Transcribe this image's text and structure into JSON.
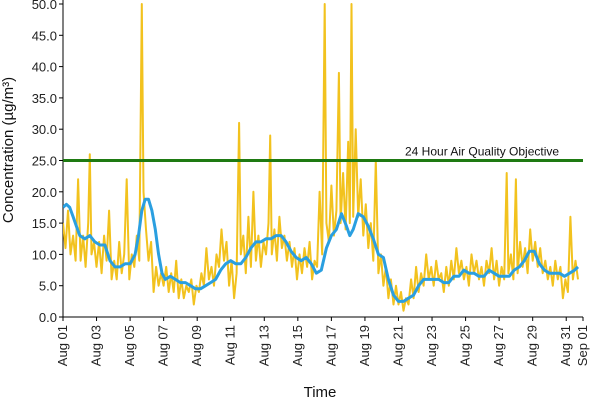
{
  "chart_data": {
    "type": "line",
    "xlabel": "Time",
    "ylabel": "Concentration (µg/m³)",
    "ylim": [
      0,
      50
    ],
    "yticks": [
      "0.0",
      "5.0",
      "10.0",
      "15.0",
      "20.0",
      "25.0",
      "30.0",
      "35.0",
      "40.0",
      "45.0",
      "50.0"
    ],
    "xticks": [
      "Aug 01",
      "Aug 03",
      "Aug 05",
      "Aug 07",
      "Aug 09",
      "Aug 11",
      "Aug 13",
      "Aug 15",
      "Aug 17",
      "Aug 19",
      "Aug 21",
      "Aug 23",
      "Aug 25",
      "Aug 27",
      "Aug 29",
      "Aug 31",
      "Sep 01"
    ],
    "x_unit": "day of month (August; 32 = Sep 01)",
    "xlim": [
      1,
      32
    ],
    "grid": false,
    "annotation": {
      "label": "24 Hour Air Quality Objective",
      "value": 25.0
    },
    "series": [
      {
        "color": "#f2c21e",
        "style": "hourly",
        "points": [
          [
            1.0,
            15
          ],
          [
            1.15,
            11
          ],
          [
            1.3,
            17
          ],
          [
            1.45,
            10
          ],
          [
            1.6,
            13
          ],
          [
            1.75,
            9
          ],
          [
            1.9,
            22
          ],
          [
            2.05,
            9
          ],
          [
            2.2,
            13
          ],
          [
            2.35,
            8
          ],
          [
            2.5,
            15
          ],
          [
            2.6,
            26
          ],
          [
            2.7,
            10
          ],
          [
            2.85,
            12
          ],
          [
            3.0,
            8
          ],
          [
            3.15,
            12
          ],
          [
            3.3,
            7
          ],
          [
            3.45,
            13
          ],
          [
            3.6,
            9
          ],
          [
            3.75,
            17
          ],
          [
            3.9,
            6
          ],
          [
            4.05,
            9
          ],
          [
            4.2,
            6
          ],
          [
            4.35,
            12
          ],
          [
            4.5,
            7
          ],
          [
            4.65,
            10
          ],
          [
            4.8,
            22
          ],
          [
            4.95,
            6
          ],
          [
            5.1,
            10
          ],
          [
            5.25,
            8
          ],
          [
            5.4,
            13
          ],
          [
            5.55,
            9
          ],
          [
            5.7,
            50
          ],
          [
            5.8,
            20
          ],
          [
            5.95,
            14
          ],
          [
            6.1,
            9
          ],
          [
            6.25,
            12
          ],
          [
            6.4,
            4
          ],
          [
            6.55,
            8
          ],
          [
            6.7,
            5
          ],
          [
            6.85,
            7
          ],
          [
            7.0,
            5
          ],
          [
            7.15,
            8
          ],
          [
            7.3,
            4
          ],
          [
            7.45,
            7
          ],
          [
            7.6,
            4
          ],
          [
            7.75,
            9
          ],
          [
            7.9,
            3
          ],
          [
            8.05,
            6
          ],
          [
            8.2,
            3
          ],
          [
            8.35,
            5
          ],
          [
            8.5,
            4
          ],
          [
            8.65,
            6
          ],
          [
            8.8,
            2
          ],
          [
            8.95,
            5
          ],
          [
            9.1,
            4
          ],
          [
            9.25,
            7
          ],
          [
            9.4,
            5
          ],
          [
            9.55,
            11
          ],
          [
            9.7,
            6
          ],
          [
            9.85,
            8
          ],
          [
            10.0,
            5
          ],
          [
            10.15,
            10
          ],
          [
            10.3,
            8
          ],
          [
            10.45,
            14
          ],
          [
            10.6,
            9
          ],
          [
            10.75,
            12
          ],
          [
            10.9,
            5
          ],
          [
            11.05,
            9
          ],
          [
            11.2,
            3
          ],
          [
            11.35,
            7
          ],
          [
            11.5,
            31
          ],
          [
            11.6,
            10
          ],
          [
            11.75,
            13
          ],
          [
            11.9,
            7
          ],
          [
            12.05,
            16
          ],
          [
            12.2,
            8
          ],
          [
            12.35,
            20
          ],
          [
            12.5,
            9
          ],
          [
            12.65,
            13
          ],
          [
            12.8,
            8
          ],
          [
            12.95,
            12
          ],
          [
            13.1,
            10
          ],
          [
            13.25,
            15
          ],
          [
            13.35,
            29
          ],
          [
            13.45,
            10
          ],
          [
            13.6,
            14
          ],
          [
            13.75,
            9
          ],
          [
            13.9,
            16
          ],
          [
            14.05,
            11
          ],
          [
            14.2,
            13
          ],
          [
            14.35,
            9
          ],
          [
            14.5,
            12
          ],
          [
            14.65,
            8
          ],
          [
            14.8,
            11
          ],
          [
            14.95,
            6
          ],
          [
            15.1,
            10
          ],
          [
            15.25,
            7
          ],
          [
            15.4,
            11
          ],
          [
            15.55,
            8
          ],
          [
            15.7,
            12
          ],
          [
            15.85,
            6
          ],
          [
            16.0,
            9
          ],
          [
            16.15,
            8
          ],
          [
            16.3,
            20
          ],
          [
            16.45,
            10
          ],
          [
            16.6,
            50
          ],
          [
            16.7,
            15
          ],
          [
            16.85,
            12
          ],
          [
            17.0,
            21
          ],
          [
            17.15,
            13
          ],
          [
            17.3,
            17
          ],
          [
            17.45,
            39
          ],
          [
            17.55,
            15
          ],
          [
            17.7,
            23
          ],
          [
            17.85,
            14
          ],
          [
            18.0,
            28
          ],
          [
            18.1,
            15
          ],
          [
            18.2,
            50
          ],
          [
            18.3,
            16
          ],
          [
            18.45,
            30
          ],
          [
            18.6,
            16
          ],
          [
            18.75,
            22
          ],
          [
            18.9,
            13
          ],
          [
            19.05,
            18
          ],
          [
            19.2,
            11
          ],
          [
            19.35,
            15
          ],
          [
            19.5,
            9
          ],
          [
            19.65,
            25
          ],
          [
            19.8,
            7
          ],
          [
            19.95,
            10
          ],
          [
            20.1,
            5
          ],
          [
            20.25,
            8
          ],
          [
            20.4,
            3
          ],
          [
            20.55,
            6
          ],
          [
            20.7,
            2
          ],
          [
            20.85,
            5
          ],
          [
            21.0,
            2
          ],
          [
            21.15,
            4
          ],
          [
            21.3,
            1
          ],
          [
            21.45,
            3
          ],
          [
            21.6,
            2
          ],
          [
            21.75,
            6
          ],
          [
            21.9,
            3
          ],
          [
            22.05,
            8
          ],
          [
            22.2,
            4
          ],
          [
            22.35,
            7
          ],
          [
            22.5,
            5
          ],
          [
            22.65,
            10
          ],
          [
            22.8,
            6
          ],
          [
            22.95,
            8
          ],
          [
            23.1,
            5
          ],
          [
            23.25,
            9
          ],
          [
            23.4,
            6
          ],
          [
            23.55,
            7
          ],
          [
            23.7,
            4
          ],
          [
            23.85,
            8
          ],
          [
            24.0,
            5
          ],
          [
            24.15,
            9
          ],
          [
            24.3,
            6
          ],
          [
            24.45,
            11
          ],
          [
            24.6,
            7
          ],
          [
            24.75,
            9
          ],
          [
            24.9,
            6
          ],
          [
            25.05,
            8
          ],
          [
            25.2,
            5
          ],
          [
            25.35,
            10
          ],
          [
            25.5,
            7
          ],
          [
            25.65,
            9
          ],
          [
            25.8,
            6
          ],
          [
            25.95,
            8
          ],
          [
            26.1,
            5
          ],
          [
            26.25,
            9
          ],
          [
            26.4,
            7
          ],
          [
            26.55,
            11
          ],
          [
            26.7,
            6
          ],
          [
            26.85,
            9
          ],
          [
            27.0,
            5
          ],
          [
            27.15,
            8
          ],
          [
            27.3,
            6
          ],
          [
            27.45,
            23
          ],
          [
            27.55,
            7
          ],
          [
            27.7,
            10
          ],
          [
            27.85,
            6
          ],
          [
            28.0,
            22
          ],
          [
            28.1,
            7
          ],
          [
            28.25,
            12
          ],
          [
            28.4,
            8
          ],
          [
            28.55,
            11
          ],
          [
            28.7,
            7
          ],
          [
            28.85,
            14
          ],
          [
            29.0,
            9
          ],
          [
            29.15,
            12
          ],
          [
            29.3,
            8
          ],
          [
            29.45,
            11
          ],
          [
            29.6,
            7
          ],
          [
            29.75,
            9
          ],
          [
            29.9,
            6
          ],
          [
            30.05,
            8
          ],
          [
            30.2,
            5
          ],
          [
            30.35,
            9
          ],
          [
            30.5,
            6
          ],
          [
            30.65,
            8
          ],
          [
            30.8,
            3
          ],
          [
            30.95,
            6
          ],
          [
            31.1,
            4
          ],
          [
            31.25,
            16
          ],
          [
            31.4,
            6
          ],
          [
            31.55,
            9
          ],
          [
            31.7,
            6
          ]
        ]
      },
      {
        "color": "#2a9fe0",
        "style": "rolling-mean",
        "points": [
          [
            1.0,
            17.5
          ],
          [
            1.2,
            18.0
          ],
          [
            1.4,
            17.5
          ],
          [
            1.6,
            16.0
          ],
          [
            1.8,
            14.5
          ],
          [
            2.0,
            13.0
          ],
          [
            2.3,
            12.5
          ],
          [
            2.6,
            13.0
          ],
          [
            2.9,
            12.0
          ],
          [
            3.2,
            11.5
          ],
          [
            3.5,
            11.5
          ],
          [
            3.8,
            9.0
          ],
          [
            4.1,
            8.0
          ],
          [
            4.4,
            8.0
          ],
          [
            4.7,
            8.5
          ],
          [
            5.0,
            8.5
          ],
          [
            5.3,
            10.0
          ],
          [
            5.5,
            13.0
          ],
          [
            5.7,
            17.0
          ],
          [
            5.9,
            18.8
          ],
          [
            6.1,
            18.8
          ],
          [
            6.3,
            17.0
          ],
          [
            6.5,
            14.0
          ],
          [
            6.7,
            10.0
          ],
          [
            6.9,
            7.0
          ],
          [
            7.1,
            6.0
          ],
          [
            7.4,
            6.5
          ],
          [
            7.7,
            6.0
          ],
          [
            8.0,
            5.5
          ],
          [
            8.3,
            5.5
          ],
          [
            8.6,
            5.0
          ],
          [
            8.9,
            4.5
          ],
          [
            9.2,
            4.5
          ],
          [
            9.5,
            5.0
          ],
          [
            9.8,
            5.5
          ],
          [
            10.1,
            6.0
          ],
          [
            10.4,
            7.5
          ],
          [
            10.7,
            8.5
          ],
          [
            11.0,
            9.0
          ],
          [
            11.3,
            8.5
          ],
          [
            11.6,
            8.5
          ],
          [
            11.9,
            9.5
          ],
          [
            12.2,
            11.0
          ],
          [
            12.5,
            12.0
          ],
          [
            12.8,
            12.0
          ],
          [
            13.1,
            12.5
          ],
          [
            13.4,
            12.5
          ],
          [
            13.7,
            13.0
          ],
          [
            14.0,
            13.0
          ],
          [
            14.3,
            12.0
          ],
          [
            14.6,
            10.5
          ],
          [
            14.9,
            9.5
          ],
          [
            15.2,
            9.0
          ],
          [
            15.5,
            9.5
          ],
          [
            15.8,
            8.5
          ],
          [
            16.1,
            7.0
          ],
          [
            16.4,
            7.5
          ],
          [
            16.7,
            11.0
          ],
          [
            17.0,
            13.0
          ],
          [
            17.3,
            14.0
          ],
          [
            17.6,
            16.5
          ],
          [
            17.9,
            14.5
          ],
          [
            18.1,
            13.0
          ],
          [
            18.3,
            14.0
          ],
          [
            18.6,
            16.5
          ],
          [
            18.9,
            16.0
          ],
          [
            19.2,
            14.5
          ],
          [
            19.5,
            12.5
          ],
          [
            19.8,
            10.0
          ],
          [
            20.1,
            9.5
          ],
          [
            20.4,
            6.0
          ],
          [
            20.7,
            3.5
          ],
          [
            21.0,
            2.5
          ],
          [
            21.3,
            2.5
          ],
          [
            21.6,
            3.0
          ],
          [
            21.9,
            3.5
          ],
          [
            22.2,
            5.0
          ],
          [
            22.5,
            6.0
          ],
          [
            22.8,
            6.0
          ],
          [
            23.1,
            6.0
          ],
          [
            23.4,
            6.0
          ],
          [
            23.7,
            5.5
          ],
          [
            24.0,
            5.5
          ],
          [
            24.3,
            6.5
          ],
          [
            24.6,
            6.5
          ],
          [
            24.9,
            7.5
          ],
          [
            25.2,
            7.0
          ],
          [
            25.5,
            7.0
          ],
          [
            25.8,
            6.5
          ],
          [
            26.1,
            6.5
          ],
          [
            26.4,
            7.5
          ],
          [
            26.7,
            7.0
          ],
          [
            27.0,
            6.5
          ],
          [
            27.3,
            6.5
          ],
          [
            27.6,
            6.5
          ],
          [
            27.9,
            7.5
          ],
          [
            28.2,
            8.0
          ],
          [
            28.5,
            9.0
          ],
          [
            28.8,
            10.5
          ],
          [
            29.1,
            10.5
          ],
          [
            29.4,
            8.5
          ],
          [
            29.7,
            7.5
          ],
          [
            30.0,
            7.0
          ],
          [
            30.3,
            7.0
          ],
          [
            30.6,
            7.0
          ],
          [
            30.9,
            6.5
          ],
          [
            31.2,
            7.0
          ],
          [
            31.5,
            7.5
          ],
          [
            31.7,
            8.0
          ]
        ]
      },
      {
        "color": "#1e7a12",
        "style": "objective",
        "points": [
          [
            1,
            25.0
          ],
          [
            32,
            25.0
          ]
        ]
      }
    ]
  }
}
